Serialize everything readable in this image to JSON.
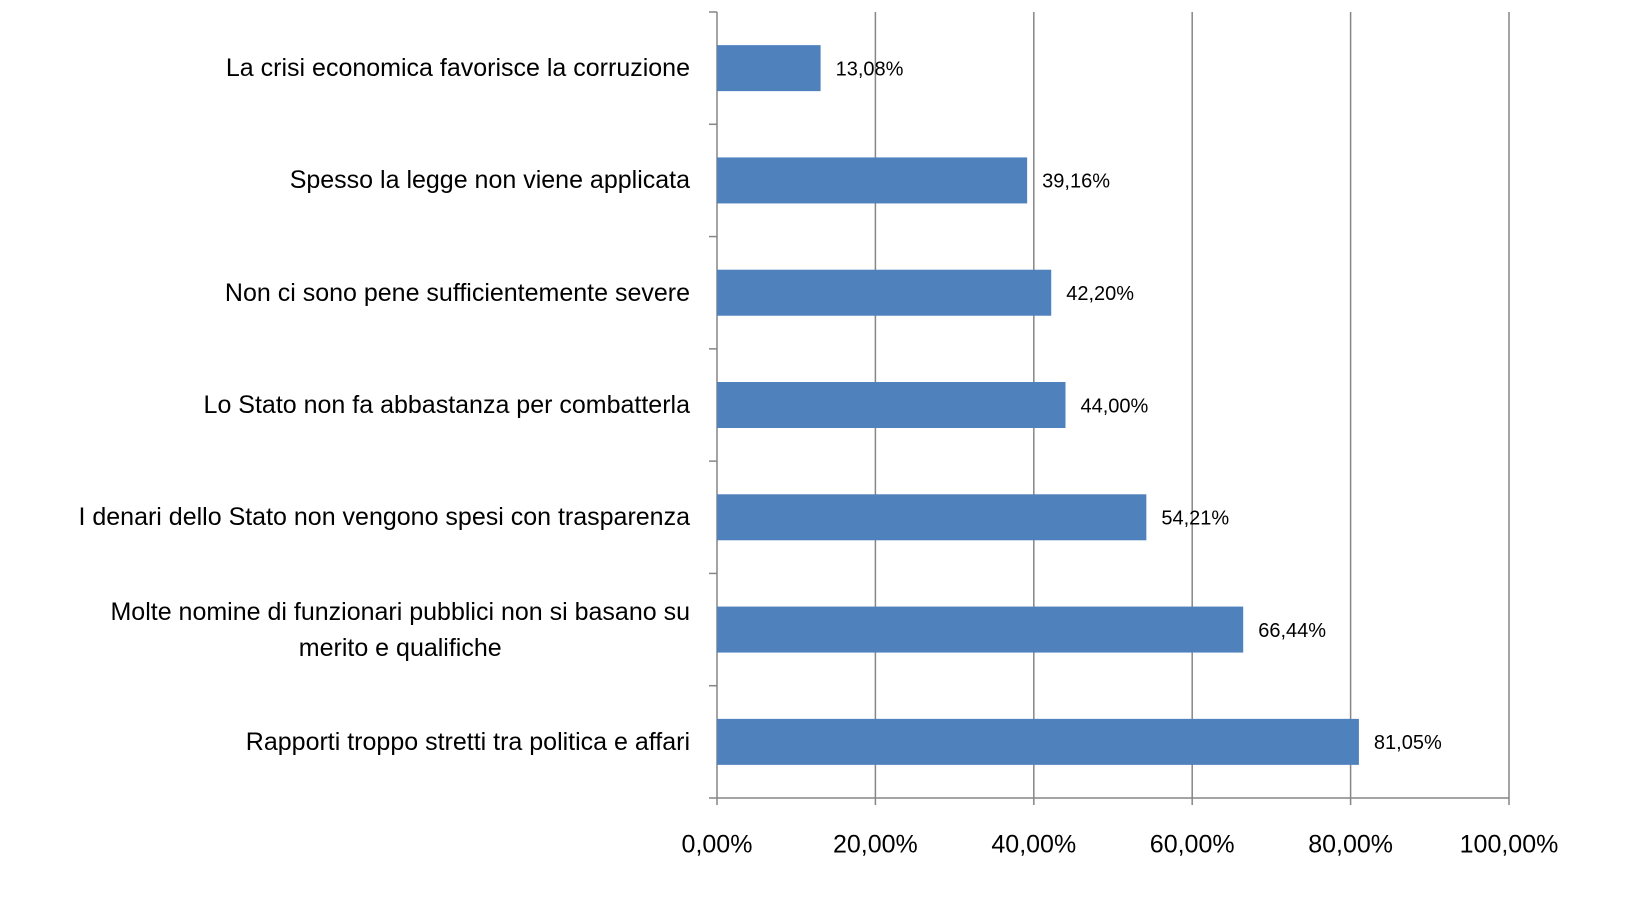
{
  "chart_data": {
    "type": "bar",
    "orientation": "horizontal",
    "categories": [
      "La crisi economica favorisce la corruzione",
      "Spesso la legge non viene applicata",
      "Non ci sono pene sufficientemente severe",
      "Lo Stato non fa abbastanza per combatterla",
      "I denari dello Stato non vengono spesi con trasparenza",
      "Molte nomine di funzionari pubblici non si basano su\nmerito e qualifiche",
      "Rapporti troppo stretti tra politica e affari"
    ],
    "values": [
      13.08,
      39.16,
      42.2,
      44,
      54.21,
      66.44,
      81.05
    ],
    "value_labels": [
      "13,08%",
      "39,16%",
      "42,20%",
      "44,00%",
      "54,21%",
      "66,44%",
      "81,05%"
    ],
    "color": "#4f81bd",
    "xlim": [
      0,
      100
    ],
    "xticks": [
      {
        "value": 0,
        "label": "0,00%"
      },
      {
        "value": 20,
        "label": "20,00%"
      },
      {
        "value": 40,
        "label": "40,00%"
      },
      {
        "value": 60,
        "label": "60,00%"
      },
      {
        "value": 80,
        "label": "80,00%"
      },
      {
        "value": 100,
        "label": "100,00%"
      }
    ],
    "grid": true
  }
}
